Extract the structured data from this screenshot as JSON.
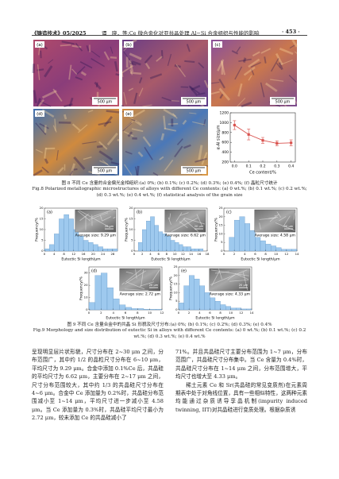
{
  "header": {
    "journal": "《铸造技术》05/2025",
    "running_title": "谭　晓，等:Ce 微合金化对亚共晶处理 Al−Si 合金组织与性能的影响",
    "page": "· 453 ·"
  },
  "figure8": {
    "panels": [
      {
        "label": "(a)",
        "scale": "500 μm"
      },
      {
        "label": "(b)",
        "scale": "500 μm"
      },
      {
        "label": "(c)",
        "scale": "500 μm"
      },
      {
        "label": "(d)",
        "scale": "500 μm"
      },
      {
        "label": "(e)",
        "scale": "500 μm"
      }
    ],
    "chart_data": {
      "type": "line",
      "x_label": "Ce content/%",
      "y_label": "α-Al size/μm",
      "x": [
        0,
        0.1,
        0.2,
        0.3,
        0.4
      ],
      "series": [
        {
          "color": "#d9534f",
          "values": [
            950,
            760,
            640,
            580,
            590
          ],
          "errors": [
            90,
            110,
            60,
            50,
            60
          ]
        }
      ],
      "xlim": [
        -0.03,
        0.43
      ],
      "xticks": [
        {
          "value": 0,
          "label": "0.0"
        },
        0.1,
        0.2,
        0.3,
        0.4
      ],
      "ylim": [
        200,
        1200
      ],
      "yticks": [
        200,
        400,
        600,
        800,
        1000,
        1200
      ]
    },
    "caption_cn": "图 8 不同 Ce 含量的合金偏光金相组织:(a) 0%; (b) 0.1%; (c) 0.2%; (d) 0.3%; (e) 0.4%; (f) 晶粒尺寸统计",
    "caption_en": "Fig.8 Polarized metallographic microstructures of alloys with different Ce contents: (a) 0 wt.%; (b) 0.1 wt.%; (c) 0.2 wt.%; (d) 0.3 wt.%; (e) 0.4 wt.%; (f) statistical analysis of the grain size"
  },
  "figure9": {
    "panels": [
      {
        "label": "(a)",
        "average": "Average size: 9.29 μm",
        "scale": "20 μm",
        "chart_data": {
          "type": "histogram",
          "x_label": "Eutectic Si length/μm",
          "y_label": "Frequency/%",
          "bins": [
            0,
            2,
            4,
            6,
            8,
            10,
            12,
            14,
            16,
            18,
            20,
            22,
            24,
            26,
            28,
            30
          ],
          "values": [
            1,
            3,
            8,
            15,
            17,
            15,
            10,
            7,
            5,
            4,
            3,
            2,
            1,
            1,
            1
          ],
          "xlim": [
            0,
            30
          ],
          "xticks": [
            0,
            4,
            8,
            12,
            16,
            20,
            24,
            28
          ],
          "ylim": [
            0,
            20
          ],
          "yticks": [
            0,
            5,
            10,
            15,
            20
          ]
        }
      },
      {
        "label": "(b)",
        "average": "Average size: 6.62 μm",
        "scale": "20 μm",
        "chart_data": {
          "type": "histogram",
          "x_label": "Eutectic Si length/μm",
          "y_label": "Frequency/%",
          "bins": [
            0,
            1,
            2,
            3,
            4,
            5,
            6,
            7,
            8,
            9,
            10,
            11,
            12,
            13,
            14,
            15,
            16,
            17,
            18
          ],
          "values": [
            0,
            4,
            10,
            14,
            16,
            12,
            9,
            8,
            7,
            5,
            4,
            3,
            2,
            2,
            1,
            1,
            1,
            0
          ],
          "xlim": [
            0,
            18
          ],
          "xticks": [
            0,
            2,
            4,
            6,
            8,
            10,
            12,
            14,
            16,
            18
          ],
          "ylim": [
            0,
            20
          ],
          "yticks": [
            0,
            5,
            10,
            15,
            20
          ]
        }
      },
      {
        "label": "(c)",
        "average": "Average size: 4.58 μm",
        "scale": "20 μm",
        "chart_data": {
          "type": "histogram",
          "x_label": "Eutectic Si length/μm",
          "y_label": "Frequency/%",
          "bins": [
            0,
            1,
            2,
            3,
            4,
            5,
            6,
            7,
            8,
            9,
            10,
            11,
            12,
            13,
            14
          ],
          "values": [
            0,
            8,
            18,
            20,
            16,
            12,
            8,
            6,
            4,
            3,
            2,
            1,
            1,
            1
          ],
          "xlim": [
            0,
            14
          ],
          "xticks": [
            0,
            2,
            4,
            6,
            8,
            10,
            12,
            14
          ],
          "ylim": [
            0,
            25
          ],
          "yticks": [
            0,
            5,
            10,
            15,
            20,
            25
          ]
        }
      },
      {
        "label": "(d)",
        "average": "Average size: 2.72 μm",
        "scale": "20 μm",
        "chart_data": {
          "type": "histogram",
          "x_label": "Eutectic Si length/μm",
          "y_label": "Frequency/%",
          "bins": [
            0,
            1,
            2,
            3,
            4,
            5,
            6,
            7,
            8,
            9,
            10,
            11,
            12
          ],
          "values": [
            6,
            28,
            30,
            18,
            9,
            4,
            2,
            1,
            1,
            0.5,
            0.5,
            0.5
          ],
          "xlim": [
            0,
            12
          ],
          "xticks": [
            0,
            2,
            4,
            6,
            8,
            10,
            12
          ],
          "ylim": [
            0,
            35
          ],
          "yticks": [
            0,
            10,
            20,
            30
          ]
        }
      },
      {
        "label": "(e)",
        "average": "Average size: 4.33 μm",
        "scale": "20 μm",
        "chart_data": {
          "type": "histogram",
          "x_label": "Eutectic Si length/μm",
          "y_label": "Frequency/%",
          "bins": [
            0,
            1,
            2,
            3,
            4,
            5,
            6,
            7,
            8,
            9,
            10,
            11,
            12,
            13,
            14
          ],
          "values": [
            4,
            14,
            20,
            18,
            14,
            10,
            7,
            5,
            3,
            2,
            1,
            1,
            0.5,
            0.5
          ],
          "xlim": [
            0,
            14
          ],
          "xticks": [
            0,
            2,
            4,
            6,
            8,
            10,
            12,
            14
          ],
          "ylim": [
            0,
            25
          ],
          "yticks": [
            0,
            5,
            10,
            15,
            20,
            25
          ]
        }
      }
    ],
    "caption_cn": "图 9 不同 Ce 含量合金中的共晶 Si 形貌及尺寸分布:(a) 0%; (b) 0.1%; (c) 0.2%; (d) 0.3%; (e) 0.4%",
    "caption_en": "Fig.9 Morphology and size distribution of eutectic Si in alloys with different Ce contents: (a) 0 wt.%; (b) 0.1 wt.%; (c) 0.2 wt.%; (d) 0.3 wt.%; (e) 0.4 wt.%"
  },
  "body": {
    "left": [
      "呈现明显层片状形貌，尺寸分布在 2~30 μm 之间，分布范围广，其中约 1/2 的晶粒尺寸分布在 6~10 μm，平均尺寸为 9.29 μm。合金中添加 0.1%Ce 后，共晶硅的平均尺寸为 6.62 μm，主要分布在 2~17 μm 之间，尺寸分布范围较大，其中约 1/3 的共晶硅尺寸分布在 4~6 μm。合金中 Ce 添加量为 0.2%时，共晶硅分布范围减小至 1~14 μm，平均尺寸进一步减小至 4.58 μm。当 Ce 添加量为 0.3%时，共晶硅平均尺寸最小为 2.72 μm，较未添加 Ce 的共晶硅减小了"
    ],
    "right": [
      "71%。并且共晶硅尺寸主要分布范围为 1~7 μm，分布范围广，共晶硅尺寸分布集中。当 Ce 含量为 0.4%时，共晶硅尺寸分布在 1~14 μm 之间，分布范围增大，平均尺寸也增大至 4.33 μm。",
      "稀土元素 Ce 和 Sr(共晶硅的常见变质剂)在元素周期表中处于对角线位置，具有一些相似特性，这两种元素均能通过杂质诱导孪晶机制(impurity induced twinning, IIT)对共晶硅进行变质处理。根据杂质诱"
    ]
  }
}
